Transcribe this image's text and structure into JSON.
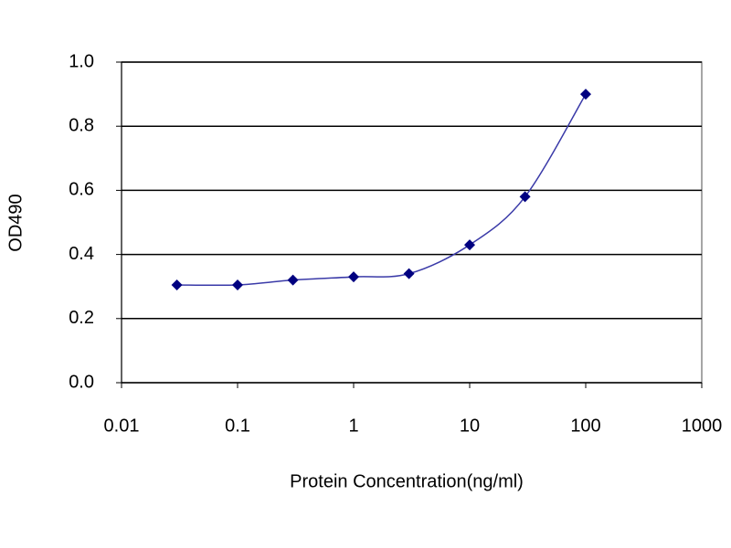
{
  "chart_data": {
    "type": "line",
    "x_label": "Protein Concentration(ng/ml)",
    "y_label": "OD490",
    "x": [
      0.03,
      0.1,
      0.3,
      1,
      3,
      10,
      30,
      100
    ],
    "series": [
      {
        "color": "#000080",
        "values": [
          0.305,
          0.305,
          0.32,
          0.33,
          0.34,
          0.43,
          0.58,
          0.9
        ]
      }
    ],
    "xlim": [
      0.01,
      1000
    ],
    "xticks": [
      0.01,
      0.1,
      1,
      10,
      100,
      1000
    ],
    "x_log": true,
    "ylim": [
      0,
      1
    ],
    "yticks": [
      {
        "value": 0,
        "label": "0.0"
      },
      0.2,
      0.4,
      0.6,
      0.8,
      {
        "value": 1,
        "label": "1.0"
      }
    ],
    "grid": true,
    "line_color": "#3a3aa8"
  }
}
